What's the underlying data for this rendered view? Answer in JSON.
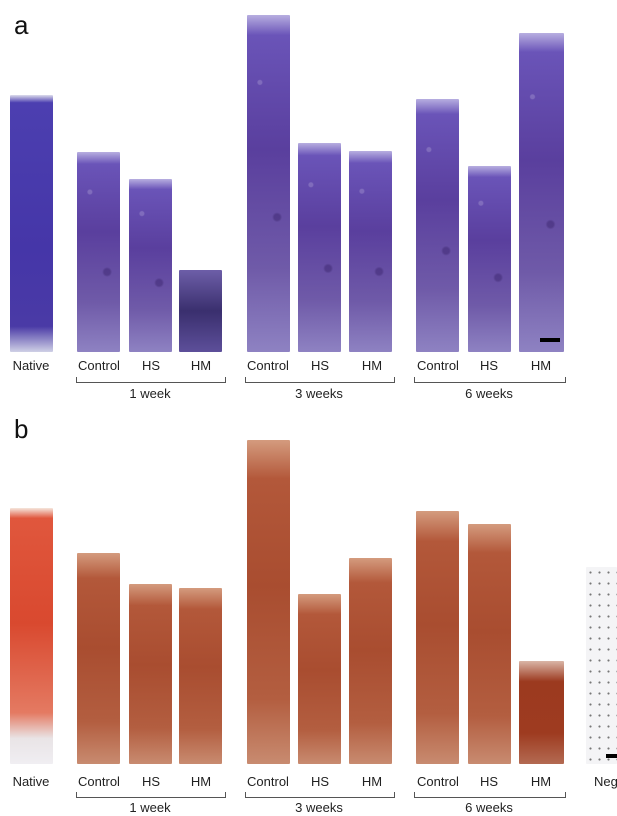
{
  "panels": {
    "a": {
      "letter": "a",
      "samples": [
        "Native",
        "Control",
        "HS",
        "HM",
        "Control",
        "HS",
        "HM",
        "Control",
        "HS",
        "HM"
      ],
      "groups": [
        "1 week",
        "3 weeks",
        "6 weeks"
      ]
    },
    "b": {
      "letter": "b",
      "samples": [
        "Native",
        "Control",
        "HS",
        "HM",
        "Control",
        "HS",
        "HM",
        "Control",
        "HS",
        "HM",
        "Neg"
      ],
      "groups": [
        "1 week",
        "3 weeks",
        "6 weeks"
      ]
    }
  },
  "colors": {
    "toluidine_blue": "#5a3f9e",
    "safranin_o": "#a94d30",
    "negative_control": "#f4f4f6"
  }
}
